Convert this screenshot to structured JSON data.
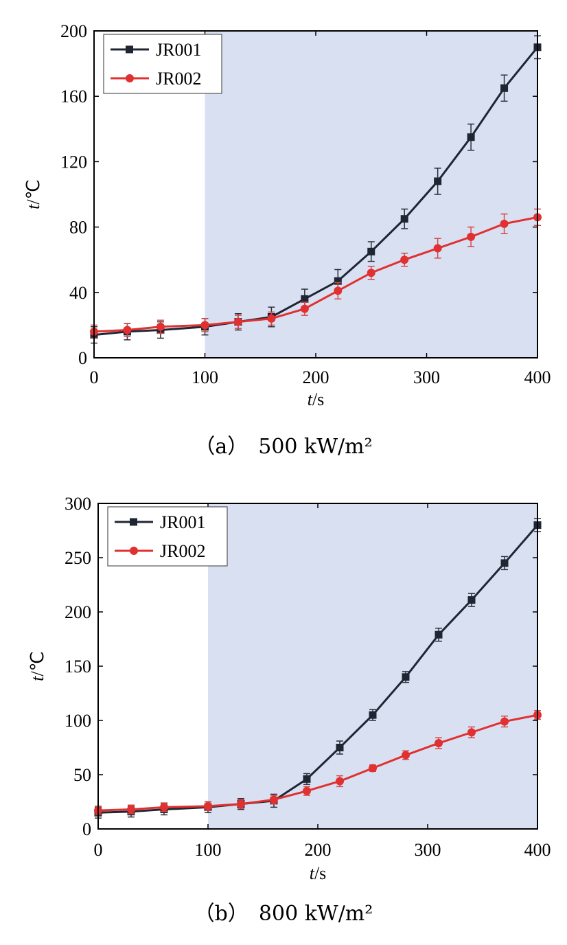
{
  "chart_data": [
    {
      "type": "line",
      "caption": "（a）　500 kW/m²",
      "xlabel": "t/s",
      "ylabel": "t/℃",
      "xlim": [
        0,
        400
      ],
      "ylim": [
        0,
        200
      ],
      "xticks": [
        0,
        100,
        200,
        300,
        400
      ],
      "yticks": [
        0,
        40,
        80,
        120,
        160,
        200
      ],
      "shaded_region_x": [
        100,
        400
      ],
      "shade_color": "#d9e0f2",
      "legend_position": "top-left",
      "x": [
        0,
        30,
        60,
        100,
        130,
        160,
        190,
        220,
        250,
        280,
        310,
        340,
        370,
        400
      ],
      "series": [
        {
          "name": "JR001",
          "color": "#1f2633",
          "marker": "square",
          "values": [
            14,
            16,
            17,
            19,
            22,
            25,
            36,
            47,
            65,
            85,
            108,
            135,
            165,
            190
          ],
          "errors": [
            5,
            5,
            5,
            5,
            5,
            6,
            6,
            7,
            6,
            6,
            8,
            8,
            8,
            7
          ]
        },
        {
          "name": "JR002",
          "color": "#e03030",
          "marker": "circle",
          "values": [
            16,
            17,
            19,
            20,
            22,
            24,
            30,
            41,
            52,
            60,
            67,
            74,
            82,
            86
          ],
          "errors": [
            4,
            4,
            4,
            4,
            4,
            4,
            4,
            5,
            4,
            4,
            6,
            6,
            6,
            5
          ]
        }
      ]
    },
    {
      "type": "line",
      "caption": "（b）　800 kW/m²",
      "xlabel": "t/s",
      "ylabel": "t/℃",
      "xlim": [
        0,
        400
      ],
      "ylim": [
        0,
        300
      ],
      "xticks": [
        0,
        100,
        200,
        300,
        400
      ],
      "yticks": [
        0,
        50,
        100,
        150,
        200,
        250,
        300
      ],
      "shaded_region_x": [
        100,
        400
      ],
      "shade_color": "#d9e0f2",
      "legend_position": "top-left",
      "x": [
        0,
        30,
        60,
        100,
        130,
        160,
        190,
        220,
        250,
        280,
        310,
        340,
        370,
        400
      ],
      "series": [
        {
          "name": "JR001",
          "color": "#1f2633",
          "marker": "square",
          "values": [
            15,
            16,
            18,
            20,
            23,
            26,
            46,
            75,
            105,
            140,
            179,
            211,
            245,
            280
          ],
          "errors": [
            5,
            5,
            5,
            5,
            5,
            6,
            5,
            6,
            5,
            5,
            6,
            6,
            6,
            6
          ]
        },
        {
          "name": "JR002",
          "color": "#e03030",
          "marker": "circle",
          "values": [
            17,
            18,
            20,
            21,
            23,
            27,
            35,
            44,
            56,
            68,
            79,
            89,
            99,
            105
          ],
          "errors": [
            4,
            4,
            4,
            4,
            4,
            4,
            4,
            5,
            3,
            4,
            5,
            5,
            5,
            4
          ]
        }
      ]
    }
  ]
}
